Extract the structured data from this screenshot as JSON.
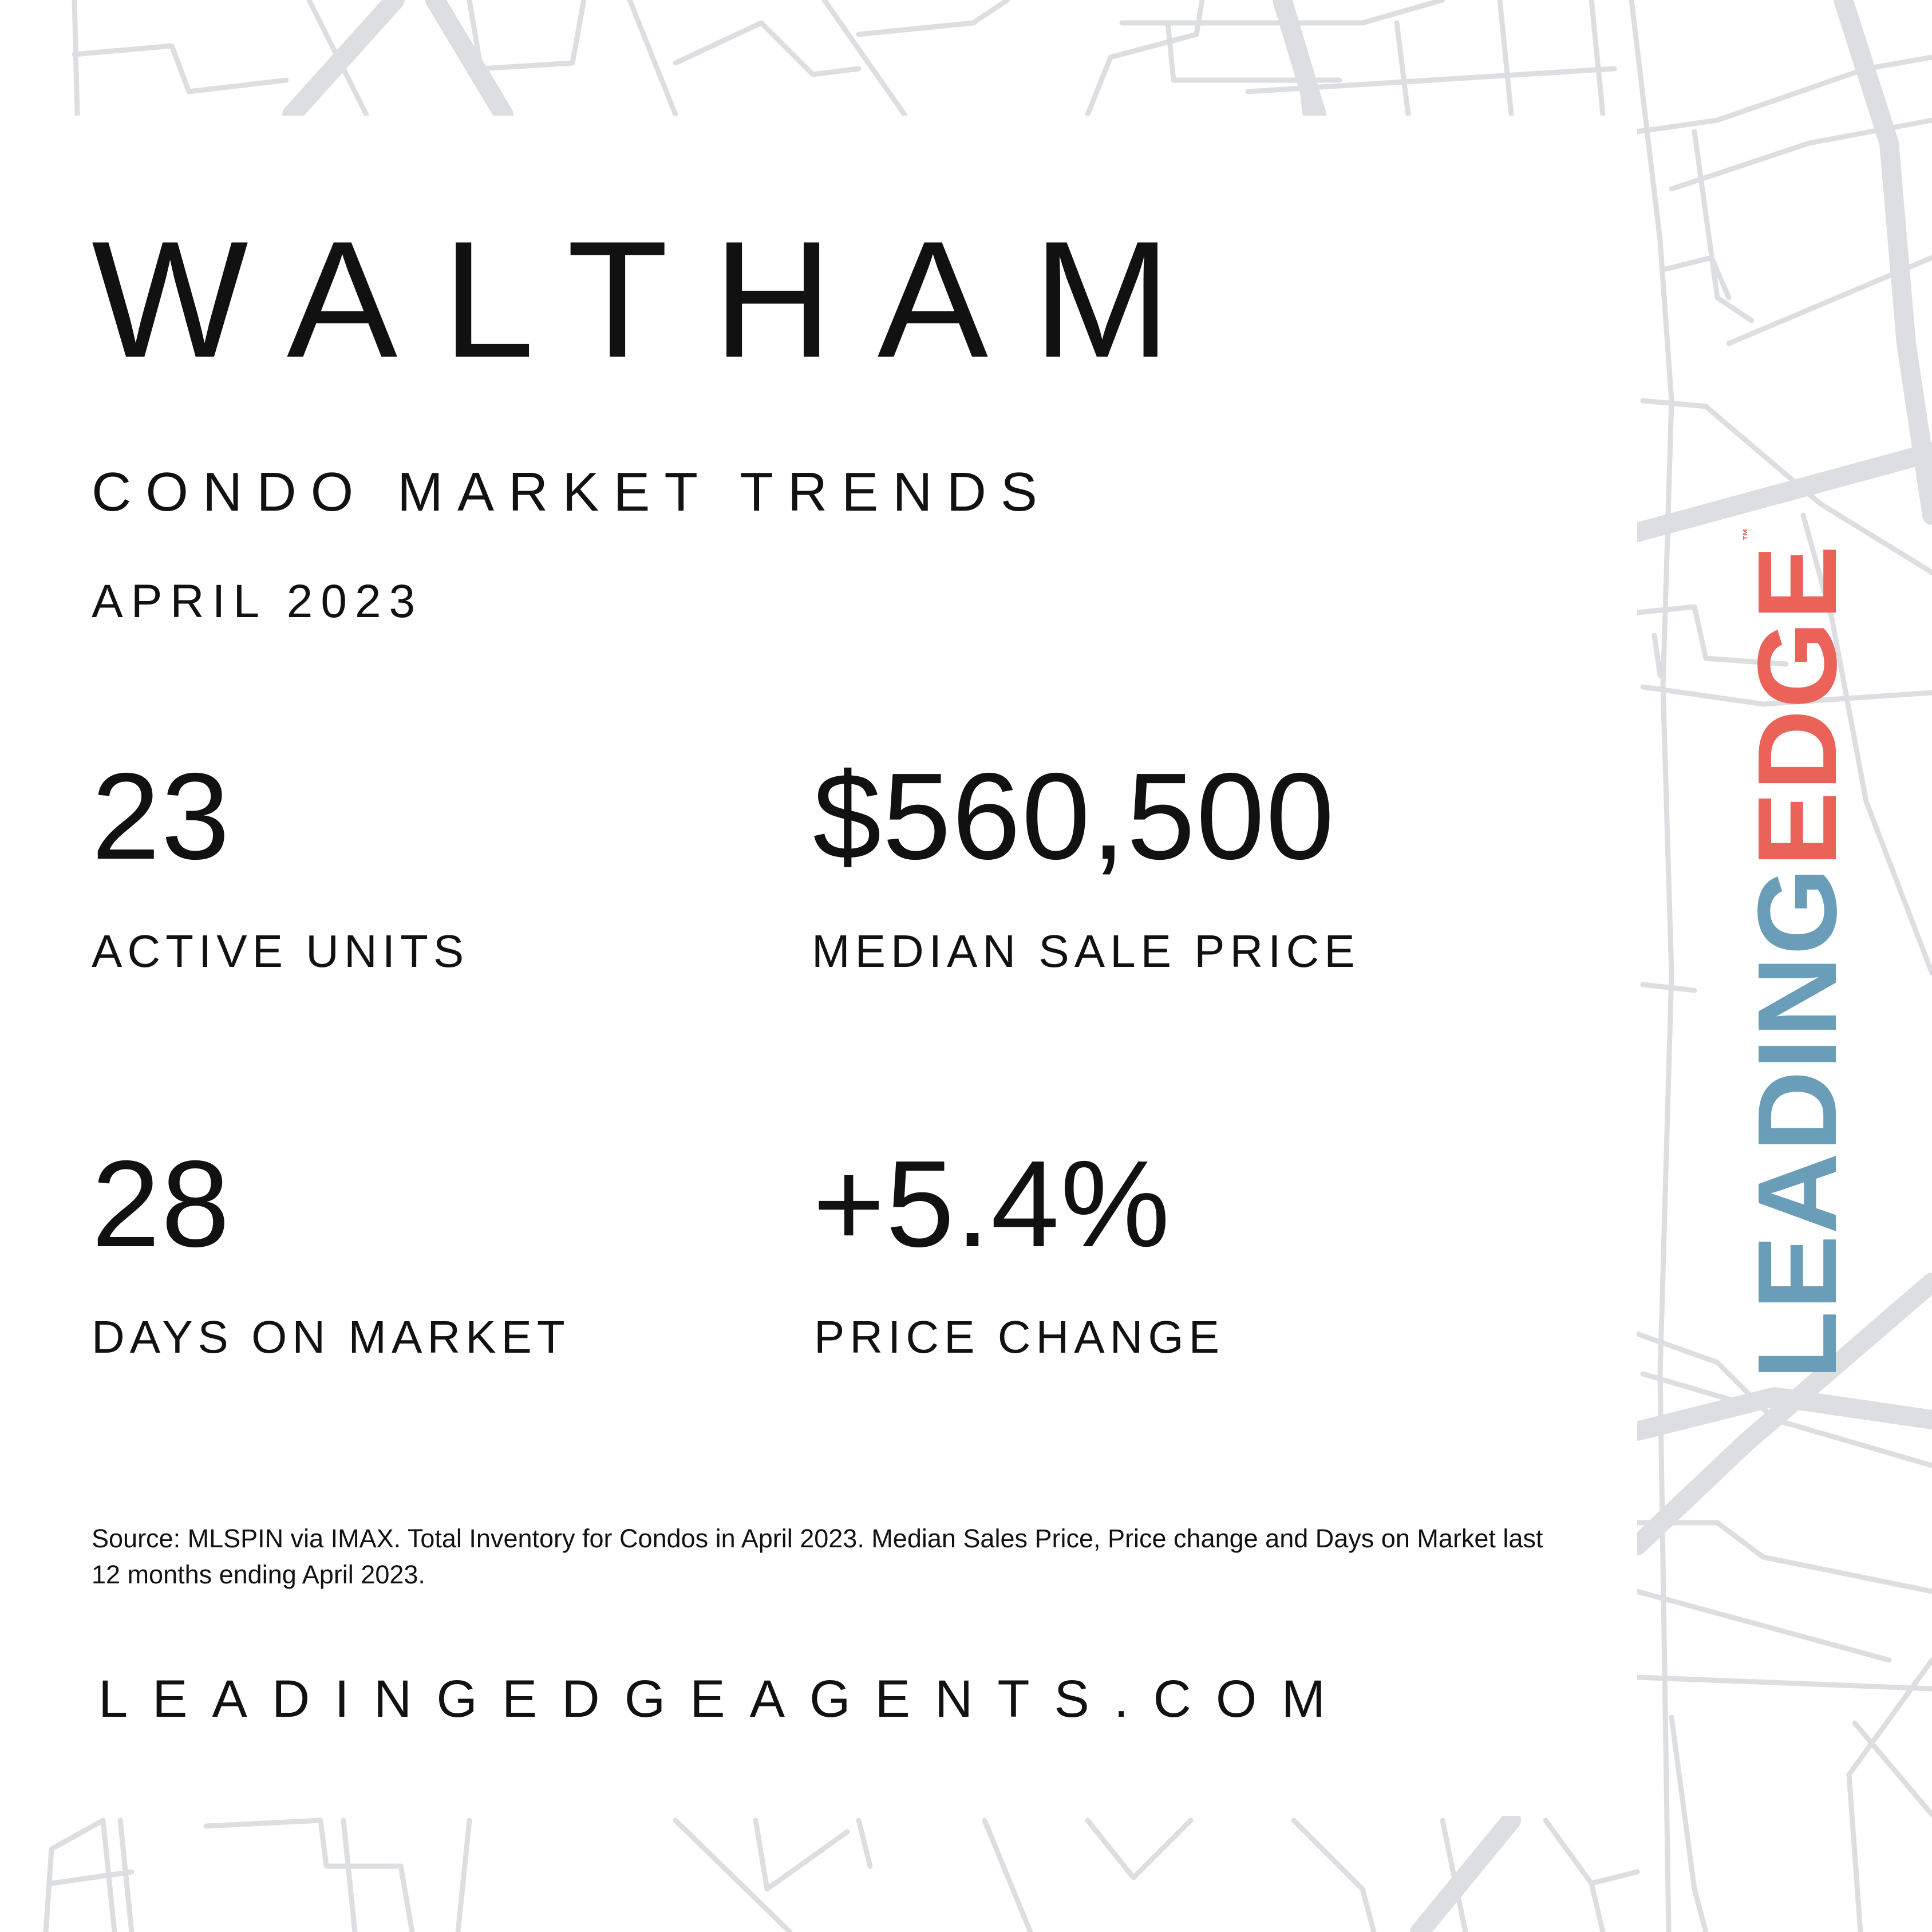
{
  "header": {
    "city": "WALTHAM",
    "subtitle": "CONDO MARKET TRENDS",
    "period": "APRIL 2023"
  },
  "stats": {
    "active_units": {
      "value": "23",
      "label": "ACTIVE UNITS"
    },
    "median_sale_price": {
      "value": "$560,500",
      "label": "MEDIAN SALE PRICE"
    },
    "days_on_market": {
      "value": "28",
      "label": "DAYS ON MARKET"
    },
    "price_change": {
      "value": "+5.4%",
      "label": "PRICE CHANGE"
    }
  },
  "footer": {
    "source": "Source: MLSPIN via IMAX. Total Inventory for Condos in April 2023. Median Sales Price, Price change and Days on Market last 12 months ending April 2023.",
    "website": "LEADINGEDGEAGENTS.COM"
  },
  "brand": {
    "logo_part_1": "LEADING",
    "logo_part_2": "EDGE",
    "trademark": "™"
  },
  "colors": {
    "text": "#111111",
    "background": "#ffffff",
    "map_lines": "#dcdee1",
    "brand_blue": "#6a9db8",
    "brand_red": "#ea6258"
  }
}
